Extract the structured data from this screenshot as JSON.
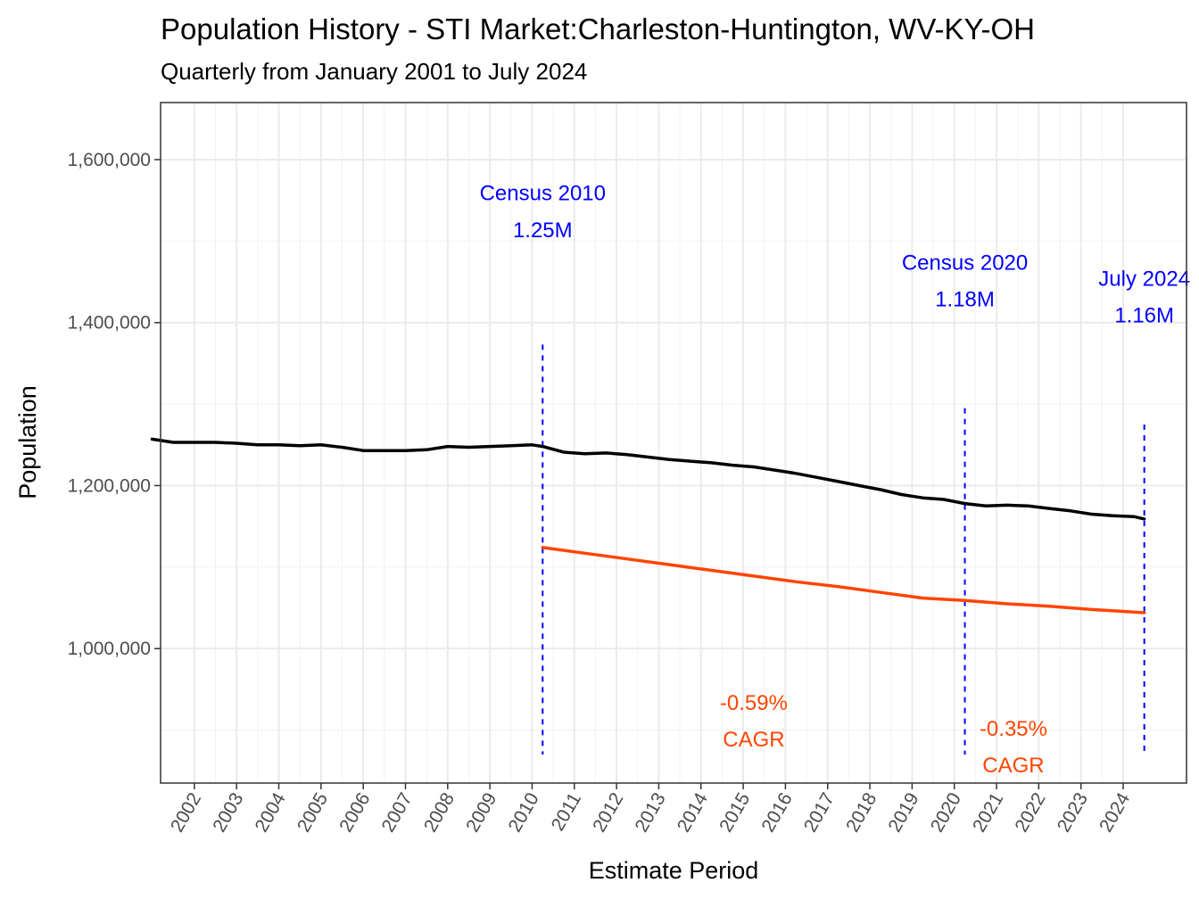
{
  "chart_data": {
    "type": "line",
    "title": "Population History - STI Market:Charleston-Huntington, WV-KY-OH",
    "subtitle": "Quarterly from January 2001 to July 2024",
    "xlabel": "Estimate Period",
    "ylabel": "Population",
    "xlim": [
      2001.2,
      2025.5
    ],
    "ylim": [
      835000,
      1670000
    ],
    "y_ticks": [
      1000000,
      1200000,
      1400000,
      1600000
    ],
    "y_tick_labels": [
      "1,000,000",
      "1,200,000",
      "1,400,000",
      "1,600,000"
    ],
    "x_ticks": [
      2002,
      2003,
      2004,
      2005,
      2006,
      2007,
      2008,
      2009,
      2010,
      2011,
      2012,
      2013,
      2014,
      2015,
      2016,
      2017,
      2018,
      2019,
      2020,
      2021,
      2022,
      2023,
      2024
    ],
    "x_tick_labels": [
      "2002",
      "2003",
      "2004",
      "2005",
      "2006",
      "2007",
      "2008",
      "2009",
      "2010",
      "2011",
      "2012",
      "2013",
      "2014",
      "2015",
      "2016",
      "2017",
      "2018",
      "2019",
      "2020",
      "2021",
      "2022",
      "2023",
      "2024"
    ],
    "grid": true,
    "series": [
      {
        "name": "Population",
        "color": "#000000",
        "x": [
          2001.0,
          2001.5,
          2002.0,
          2002.5,
          2003.0,
          2003.5,
          2004.0,
          2004.5,
          2005.0,
          2005.5,
          2006.0,
          2006.5,
          2007.0,
          2007.5,
          2008.0,
          2008.5,
          2009.0,
          2009.5,
          2010.0,
          2010.25,
          2010.75,
          2011.25,
          2011.75,
          2012.25,
          2012.75,
          2013.25,
          2013.75,
          2014.25,
          2014.75,
          2015.25,
          2015.75,
          2016.25,
          2016.75,
          2017.25,
          2017.75,
          2018.25,
          2018.75,
          2019.25,
          2019.75,
          2020.25,
          2020.75,
          2021.25,
          2021.75,
          2022.25,
          2022.75,
          2023.25,
          2023.75,
          2024.25,
          2024.5
        ],
        "values": [
          1257000,
          1253000,
          1253000,
          1253000,
          1252000,
          1250000,
          1250000,
          1249000,
          1250000,
          1247000,
          1243000,
          1243000,
          1243000,
          1244000,
          1248000,
          1247000,
          1248000,
          1249000,
          1250000,
          1248000,
          1241000,
          1239000,
          1240000,
          1238000,
          1235000,
          1232000,
          1230000,
          1228000,
          1225000,
          1223000,
          1219000,
          1215000,
          1210000,
          1205000,
          1200000,
          1195000,
          1189000,
          1185000,
          1183000,
          1178000,
          1175000,
          1176000,
          1175000,
          1172000,
          1169000,
          1165000,
          1163000,
          1162000,
          1159000
        ]
      },
      {
        "name": "CAGR trend",
        "color": "#ff4500",
        "x": [
          2010.25,
          2011.25,
          2012.25,
          2013.25,
          2014.25,
          2015.25,
          2016.25,
          2017.25,
          2018.25,
          2019.25,
          2020.25,
          2021.25,
          2022.25,
          2023.25,
          2024.5
        ],
        "values": [
          1124000,
          1117000,
          1110000,
          1103000,
          1096000,
          1089000,
          1082000,
          1076000,
          1069000,
          1062000,
          1059000,
          1055000,
          1052000,
          1048000,
          1044000
        ]
      }
    ],
    "vlines": [
      {
        "x": 2010.25,
        "y_top": 1373000,
        "y_bottom": 870000,
        "color": "#0000ff"
      },
      {
        "x": 2020.25,
        "y_top": 1295000,
        "y_bottom": 870000,
        "color": "#0000ff"
      },
      {
        "x": 2024.5,
        "y_top": 1275000,
        "y_bottom": 870000,
        "color": "#0000ff"
      }
    ],
    "annotations": [
      {
        "line1": "Census 2010",
        "line2": "1.25M",
        "x": 2010.25,
        "y1": 1550000,
        "y2": 1505000,
        "color": "#0000ff"
      },
      {
        "line1": "Census 2020",
        "line2": "1.18M",
        "x": 2020.25,
        "y1": 1465000,
        "y2": 1420000,
        "color": "#0000ff"
      },
      {
        "line1": "July 2024",
        "line2": "1.16M",
        "x": 2024.5,
        "y1": 1445000,
        "y2": 1400000,
        "color": "#0000ff"
      },
      {
        "line1": "-0.59%",
        "line2": "CAGR",
        "x": 2015.25,
        "y1": 925000,
        "y2": 880000,
        "color": "#ff4500"
      },
      {
        "line1": "-0.35%",
        "line2": "CAGR",
        "x": 2021.4,
        "y1": 893000,
        "y2": 848000,
        "color": "#ff4500"
      }
    ]
  }
}
